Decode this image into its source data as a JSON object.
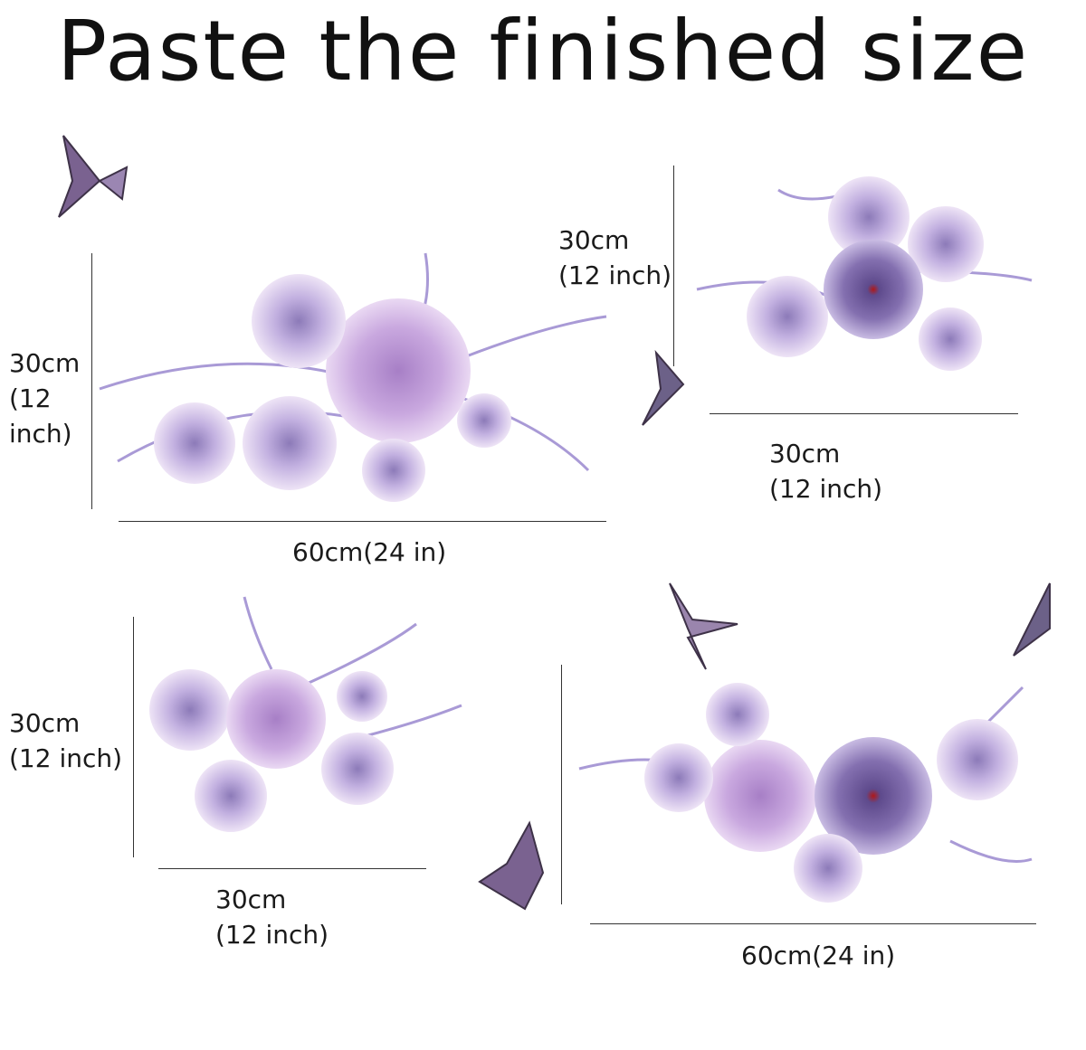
{
  "title": "Paste the finished size",
  "groups": [
    {
      "height_label_lines": [
        "30cm",
        "(12",
        "inch)"
      ],
      "width_label": "60cm(24 in)"
    },
    {
      "height_label_lines": [
        "30cm",
        "(12 inch)"
      ],
      "width_label_lines": [
        "30cm",
        "(12 inch)"
      ]
    },
    {
      "height_label_lines": [
        "30cm",
        "(12 inch)"
      ],
      "width_label_lines": [
        "30cm",
        "(12 inch)"
      ]
    },
    {
      "width_label": "60cm(24 in)"
    }
  ],
  "colors": {
    "flower_light": "#d9c3e6",
    "flower_mid": "#b48fd0",
    "flower_dark": "#6f5a9e",
    "butterfly": "#5a4a6e",
    "leaf": "#a99ad6"
  }
}
